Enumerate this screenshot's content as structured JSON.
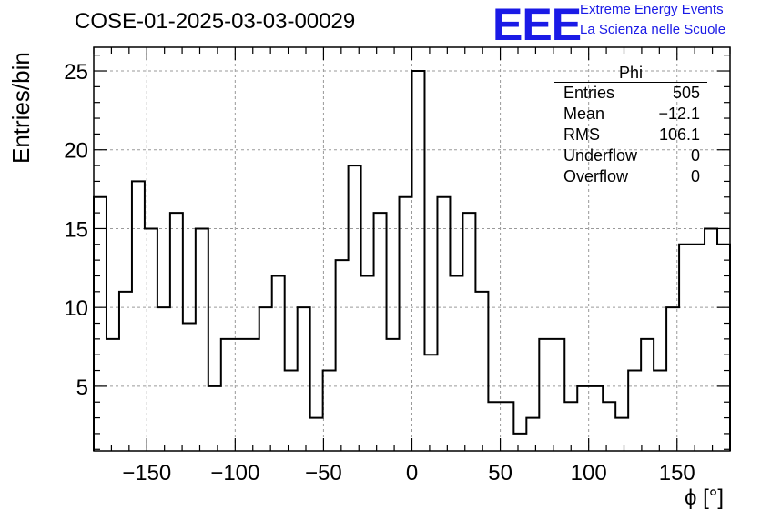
{
  "run_title": "COSE-01-2025-03-03-00029",
  "logo": {
    "mark": "EEE",
    "line1": "Extreme Energy Events",
    "line2": "La Scienza nelle Scuole"
  },
  "stats_box": {
    "title": "Phi",
    "rows": [
      {
        "label": "Entries",
        "value": "505"
      },
      {
        "label": "Mean",
        "value": "−12.1"
      },
      {
        "label": "RMS",
        "value": "106.1"
      },
      {
        "label": "Underflow",
        "value": "0"
      },
      {
        "label": "Overflow",
        "value": "0"
      }
    ]
  },
  "chart_data": {
    "type": "histogram",
    "title": "COSE-01-2025-03-03-00029",
    "xlabel": "ϕ [°]",
    "ylabel": "Entries/bin",
    "xlim": [
      -180,
      180
    ],
    "ylim": [
      0.9,
      26.5
    ],
    "bin_width": 7.2,
    "x_ticks": [
      -150,
      -100,
      -50,
      0,
      50,
      100,
      150
    ],
    "x_tick_labels": [
      "−150",
      "−100",
      "−50",
      "0",
      "50",
      "100",
      "150"
    ],
    "y_ticks": [
      5,
      10,
      15,
      20,
      25
    ],
    "y_tick_labels": [
      "5",
      "10",
      "15",
      "20",
      "25"
    ],
    "grid": true,
    "values": [
      17,
      8,
      11,
      18,
      15,
      10,
      16,
      9,
      15,
      5,
      8,
      8,
      8,
      10,
      12,
      6,
      10,
      3,
      6,
      13,
      19,
      12,
      16,
      8,
      17,
      25,
      7,
      17,
      12,
      16,
      11,
      4,
      4,
      2,
      3,
      8,
      8,
      4,
      5,
      5,
      4,
      3,
      6,
      8,
      6,
      10,
      14,
      14,
      15,
      14
    ]
  }
}
